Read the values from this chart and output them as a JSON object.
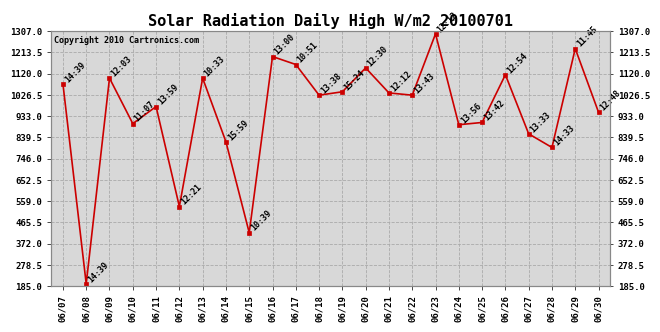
{
  "title": "Solar Radiation Daily High W/m2 20100701",
  "copyright": "Copyright 2010 Cartronics.com",
  "x_labels": [
    "06/07",
    "06/08",
    "06/09",
    "06/10",
    "06/11",
    "06/12",
    "06/13",
    "06/14",
    "06/15",
    "06/16",
    "06/17",
    "06/18",
    "06/19",
    "06/20",
    "06/21",
    "06/22",
    "06/23",
    "06/24",
    "06/25",
    "06/26",
    "06/27",
    "06/28",
    "06/29",
    "06/30"
  ],
  "y_values": [
    1075,
    195,
    1100,
    900,
    975,
    535,
    1100,
    820,
    420,
    1195,
    1160,
    1025,
    1040,
    1145,
    1035,
    1025,
    1295,
    895,
    905,
    1115,
    855,
    795,
    1230,
    950
  ],
  "point_labels": [
    "14:39",
    "14:39",
    "12:03",
    "11:07",
    "13:59",
    "12:21",
    "10:33",
    "15:59",
    "10:39",
    "13:00",
    "10:51",
    "13:38",
    "15:24",
    "12:30",
    "12:12",
    "13:43",
    "12:12",
    "13:56",
    "13:42",
    "12:54",
    "13:33",
    "14:33",
    "11:45",
    "12:48"
  ],
  "line_color": "#cc0000",
  "marker_color": "#cc0000",
  "background_color": "#d8d8d8",
  "grid_color": "#aaaaaa",
  "y_min": 185.0,
  "y_max": 1307.0,
  "y_ticks": [
    185.0,
    278.5,
    372.0,
    465.5,
    559.0,
    652.5,
    746.0,
    839.5,
    933.0,
    1026.5,
    1120.0,
    1213.5,
    1307.0
  ],
  "title_fontsize": 11,
  "label_fontsize": 6.5,
  "point_label_fontsize": 6,
  "copyright_fontsize": 6
}
